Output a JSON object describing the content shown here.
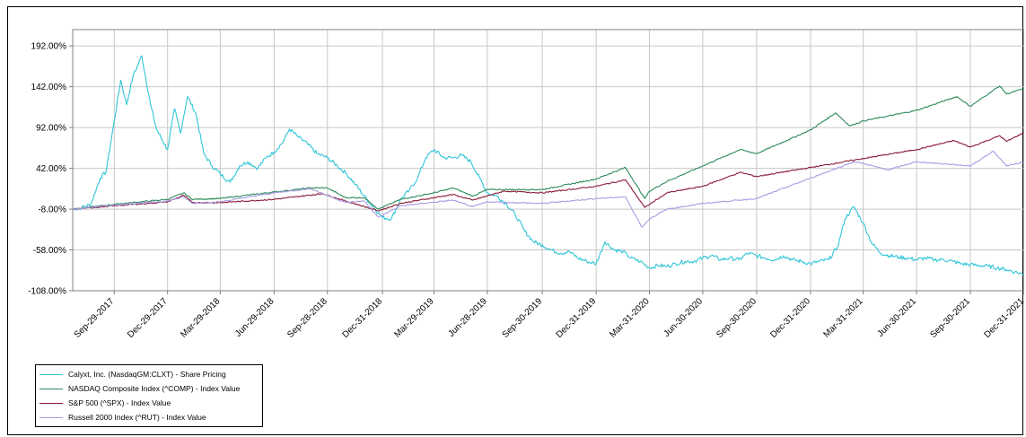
{
  "chart_data": {
    "type": "line",
    "title": "",
    "xlabel": "",
    "ylabel": "",
    "ylim": [
      -108,
      212
    ],
    "y_ticks": [
      "192.00%",
      "142.00%",
      "92.00%",
      "42.00%",
      "-8.00%",
      "-58.00%",
      "-108.00%"
    ],
    "y_tick_values": [
      192,
      142,
      92,
      42,
      -8,
      -58,
      -108
    ],
    "x_ticks": [
      "Sep-29-2017",
      "Dec-29-2017",
      "Mar-29-2018",
      "Jun-29-2018",
      "Sep-28-2018",
      "Dec-31-2018",
      "Mar-29-2019",
      "Jun-28-2019",
      "Sep-30-2019",
      "Dec-31-2019",
      "Mar-31-2020",
      "Jun-30-2020",
      "Sep-30-2020",
      "Dec-31-2020",
      "Mar-31-2021",
      "Jun-30-2021",
      "Sep-30-2021",
      "Dec-31-2021"
    ],
    "x_start": "2017-07-20",
    "x_end": "2021-12-31",
    "grid": true,
    "legend_position": "bottom-left",
    "series": [
      {
        "name": "Calyxt, Inc. (NasdaqGM:CLXT) - Share Pricing",
        "color": "#2fc5d8",
        "x": [
          "2017-07-20",
          "2017-08-05",
          "2017-08-20",
          "2017-09-05",
          "2017-09-15",
          "2017-09-29",
          "2017-10-10",
          "2017-10-20",
          "2017-10-31",
          "2017-11-15",
          "2017-11-30",
          "2017-12-10",
          "2017-12-29",
          "2018-01-10",
          "2018-01-20",
          "2018-02-01",
          "2018-02-15",
          "2018-03-01",
          "2018-03-15",
          "2018-03-29",
          "2018-04-15",
          "2018-05-01",
          "2018-05-15",
          "2018-06-01",
          "2018-06-15",
          "2018-06-29",
          "2018-07-15",
          "2018-07-25",
          "2018-08-10",
          "2018-08-25",
          "2018-09-10",
          "2018-09-28",
          "2018-10-15",
          "2018-10-31",
          "2018-11-15",
          "2018-11-30",
          "2018-12-15",
          "2018-12-31",
          "2019-01-15",
          "2019-02-01",
          "2019-02-15",
          "2019-03-01",
          "2019-03-15",
          "2019-03-29",
          "2019-04-15",
          "2019-05-01",
          "2019-05-15",
          "2019-05-31",
          "2019-06-15",
          "2019-06-28",
          "2019-07-15",
          "2019-07-31",
          "2019-08-15",
          "2019-08-31",
          "2019-09-15",
          "2019-09-30",
          "2019-10-15",
          "2019-10-31",
          "2019-11-15",
          "2019-11-30",
          "2019-12-15",
          "2019-12-31",
          "2020-01-15",
          "2020-01-31",
          "2020-02-15",
          "2020-02-28",
          "2020-03-15",
          "2020-03-31",
          "2020-04-15",
          "2020-04-30",
          "2020-05-15",
          "2020-05-31",
          "2020-06-15",
          "2020-06-30",
          "2020-07-15",
          "2020-07-31",
          "2020-08-15",
          "2020-08-31",
          "2020-09-15",
          "2020-09-30",
          "2020-10-15",
          "2020-10-31",
          "2020-11-15",
          "2020-11-30",
          "2020-12-15",
          "2020-12-31",
          "2021-01-15",
          "2021-01-31",
          "2021-02-15",
          "2021-02-28",
          "2021-03-15",
          "2021-03-31",
          "2021-04-15",
          "2021-04-30",
          "2021-05-15",
          "2021-05-31",
          "2021-06-15",
          "2021-06-30",
          "2021-07-15",
          "2021-07-31",
          "2021-08-15",
          "2021-08-31",
          "2021-09-15",
          "2021-09-30",
          "2021-10-15",
          "2021-10-31",
          "2021-11-15",
          "2021-11-30",
          "2021-12-15",
          "2021-12-31"
        ],
        "values": [
          -8,
          -6,
          -2,
          30,
          38,
          100,
          150,
          120,
          155,
          180,
          120,
          90,
          65,
          115,
          85,
          130,
          110,
          60,
          45,
          35,
          25,
          45,
          50,
          42,
          55,
          62,
          75,
          90,
          80,
          72,
          60,
          55,
          45,
          35,
          22,
          8,
          -5,
          -18,
          -20,
          5,
          15,
          30,
          55,
          65,
          55,
          55,
          58,
          50,
          30,
          12,
          8,
          -2,
          -15,
          -35,
          -48,
          -52,
          -58,
          -62,
          -60,
          -68,
          -72,
          -75,
          -48,
          -58,
          -60,
          -68,
          -72,
          -80,
          -77,
          -78,
          -75,
          -72,
          -72,
          -68,
          -65,
          -70,
          -68,
          -70,
          -62,
          -65,
          -68,
          -70,
          -65,
          -70,
          -72,
          -75,
          -72,
          -70,
          -55,
          -20,
          -5,
          -25,
          -50,
          -62,
          -65,
          -67,
          -68,
          -70,
          -68,
          -70,
          -70,
          -72,
          -75,
          -76,
          -77,
          -78,
          -80,
          -82,
          -85,
          -88
        ]
      },
      {
        "name": "NASDAQ Composite Index (^COMP) - Index Value",
        "color": "#2d8a5a",
        "x": [
          "2017-07-20",
          "2017-09-29",
          "2017-12-29",
          "2018-01-26",
          "2018-02-09",
          "2018-03-29",
          "2018-06-29",
          "2018-08-30",
          "2018-09-28",
          "2018-10-29",
          "2018-11-30",
          "2018-12-24",
          "2019-01-31",
          "2019-03-29",
          "2019-05-01",
          "2019-06-03",
          "2019-06-28",
          "2019-09-30",
          "2019-12-31",
          "2020-02-19",
          "2020-03-23",
          "2020-03-31",
          "2020-04-30",
          "2020-06-30",
          "2020-09-02",
          "2020-09-30",
          "2020-12-31",
          "2021-02-12",
          "2021-03-08",
          "2021-03-31",
          "2021-06-30",
          "2021-09-07",
          "2021-09-30",
          "2021-11-19",
          "2021-12-01",
          "2021-12-31"
        ],
        "values": [
          -8,
          -2,
          4,
          12,
          4,
          5,
          13,
          18,
          18,
          6,
          6,
          -8,
          4,
          12,
          18,
          8,
          16,
          16,
          29,
          43,
          5,
          14,
          26,
          45,
          65,
          60,
          89,
          110,
          94,
          100,
          113,
          130,
          118,
          143,
          133,
          140
        ]
      },
      {
        "name": "S&P 500 (^SPX) - Index Value",
        "color": "#8b1a3a",
        "x": [
          "2017-07-20",
          "2017-09-29",
          "2017-12-29",
          "2018-01-26",
          "2018-02-09",
          "2018-03-29",
          "2018-06-29",
          "2018-09-20",
          "2018-10-29",
          "2018-12-24",
          "2019-01-31",
          "2019-04-30",
          "2019-06-03",
          "2019-07-26",
          "2019-09-30",
          "2019-12-31",
          "2020-02-19",
          "2020-03-23",
          "2020-04-30",
          "2020-06-30",
          "2020-09-02",
          "2020-09-30",
          "2020-12-31",
          "2021-03-31",
          "2021-06-30",
          "2021-09-02",
          "2021-09-30",
          "2021-11-19",
          "2021-12-01",
          "2021-12-31"
        ],
        "values": [
          -8,
          -4,
          1,
          9,
          0,
          0,
          4,
          11,
          2,
          -10,
          -1,
          10,
          3,
          14,
          12,
          20,
          28,
          -6,
          12,
          20,
          37,
          32,
          43,
          54,
          65,
          76,
          68,
          82,
          75,
          86
        ]
      },
      {
        "name": "Russell 2000 Index (^RUT) - Index Value",
        "color": "#a89ce6",
        "x": [
          "2017-07-20",
          "2017-09-29",
          "2017-12-29",
          "2018-01-26",
          "2018-02-09",
          "2018-03-29",
          "2018-06-29",
          "2018-08-31",
          "2018-10-29",
          "2018-11-30",
          "2018-12-24",
          "2019-01-31",
          "2019-04-30",
          "2019-06-03",
          "2019-06-28",
          "2019-09-30",
          "2019-12-31",
          "2020-02-19",
          "2020-03-18",
          "2020-03-31",
          "2020-04-30",
          "2020-06-30",
          "2020-09-30",
          "2020-12-31",
          "2021-03-15",
          "2021-03-31",
          "2021-05-12",
          "2021-06-30",
          "2021-09-30",
          "2021-11-08",
          "2021-12-01",
          "2021-12-31"
        ],
        "values": [
          -8,
          -3,
          2,
          7,
          -1,
          1,
          12,
          17,
          0,
          2,
          -18,
          -4,
          3,
          -5,
          1,
          -1,
          5,
          7,
          -30,
          -20,
          -8,
          -1,
          5,
          30,
          50,
          48,
          40,
          50,
          45,
          63,
          45,
          50
        ]
      }
    ]
  }
}
